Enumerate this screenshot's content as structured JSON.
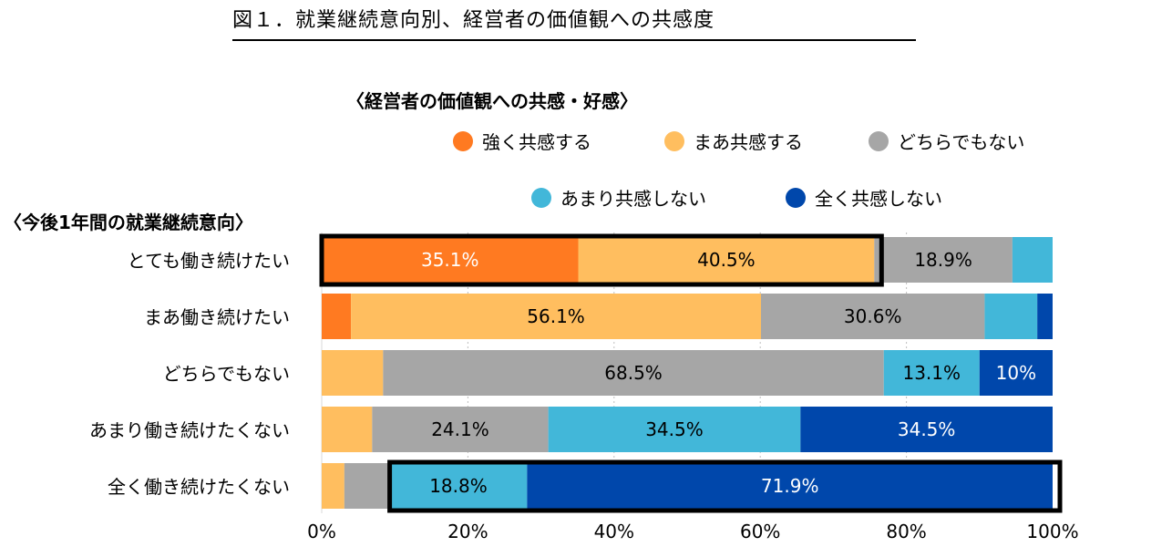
{
  "page_title": "図１．就業継続意向別、経営者の価値観への共感度",
  "chart_data": {
    "type": "bar",
    "orientation": "horizontal",
    "stacked": true,
    "subtitle": "〈経営者の価値観への共感・好感〉",
    "category_axis_title": "〈今後1年間の就業継続意向〉",
    "categories": [
      "とても働き続けたい",
      "まあ働き続けたい",
      "どちらでもない",
      "あまり働き続けたくない",
      "全く働き続けたくない"
    ],
    "series": [
      {
        "name": "強く共感する",
        "color": "#FF7A21",
        "values": [
          35.1,
          4.0,
          0.0,
          0.0,
          0.0
        ],
        "labels": [
          "35.1%",
          "",
          "",
          "",
          ""
        ]
      },
      {
        "name": "まあ共感する",
        "color": "#FFBE5F",
        "values": [
          40.5,
          56.1,
          8.4,
          6.9,
          3.1
        ],
        "labels": [
          "40.5%",
          "56.1%",
          "",
          "",
          ""
        ]
      },
      {
        "name": "どちらでもない",
        "color": "#A6A6A6",
        "values": [
          18.9,
          30.6,
          68.5,
          24.1,
          6.2
        ],
        "labels": [
          "18.9%",
          "30.6%",
          "68.5%",
          "24.1%",
          ""
        ]
      },
      {
        "name": "あまり共感しない",
        "color": "#42B7D9",
        "values": [
          5.5,
          7.2,
          13.1,
          34.5,
          18.8
        ],
        "labels": [
          "",
          "",
          "13.1%",
          "34.5%",
          "18.8%"
        ]
      },
      {
        "name": "全く共感しない",
        "color": "#0047AB",
        "values": [
          0.0,
          2.1,
          10.0,
          34.5,
          71.9
        ],
        "labels": [
          "",
          "",
          "10%",
          "34.5%",
          "71.9%"
        ]
      }
    ],
    "xlim": [
      0,
      100
    ],
    "xticks": [
      "0%",
      "20%",
      "40%",
      "60%",
      "80%",
      "100%"
    ],
    "grid": "vertical dotted",
    "legend_position": "top",
    "highlights": [
      {
        "row": 0,
        "series": [
          "強く共感する",
          "まあ共感する"
        ]
      },
      {
        "row": 4,
        "series": [
          "あまり共感しない",
          "全く共感しない"
        ]
      }
    ]
  }
}
